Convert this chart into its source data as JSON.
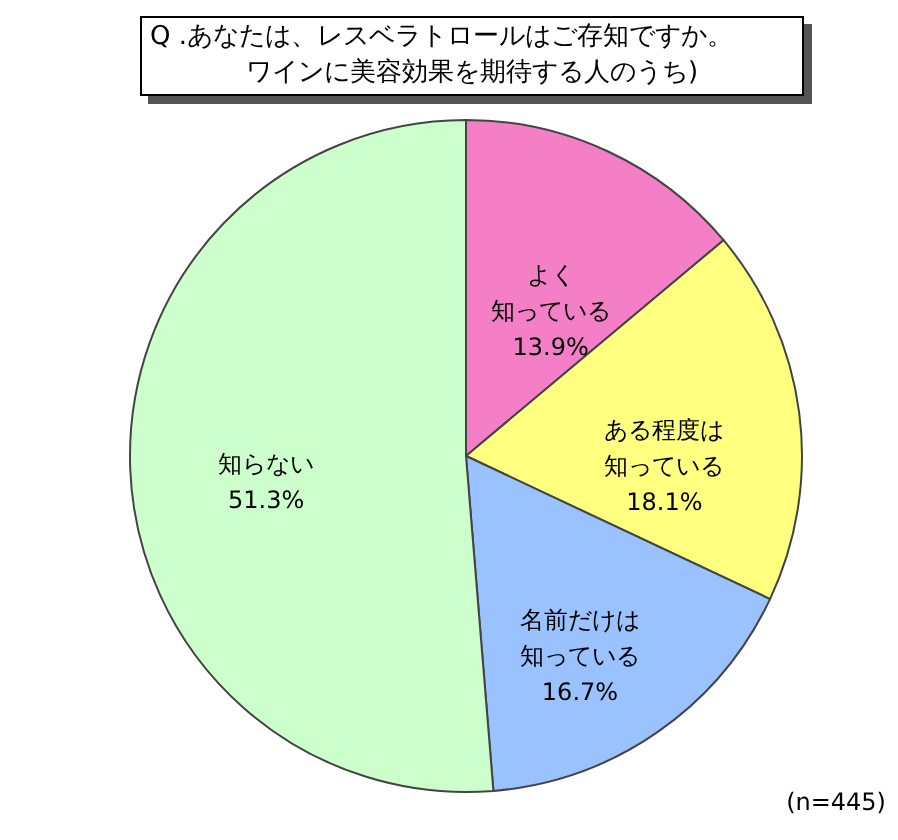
{
  "chart_data": {
    "type": "pie",
    "title": "Q .あなたは、レスベラトロールはご存知ですか。",
    "subtitle": "ワインに美容効果を期待する人のうち)",
    "categories": [
      "よく知っている",
      "ある程度は知っている",
      "名前だけは知っている",
      "知らない"
    ],
    "values": [
      13.9,
      18.1,
      16.7,
      51.3
    ],
    "value_labels": [
      "13.9%",
      "18.1%",
      "16.7%",
      "51.3%"
    ],
    "colors": [
      "#f47fc6",
      "#ffff80",
      "#99c2ff",
      "#ccffcc"
    ],
    "legend": false,
    "annotations": [
      "(n=445)"
    ]
  }
}
